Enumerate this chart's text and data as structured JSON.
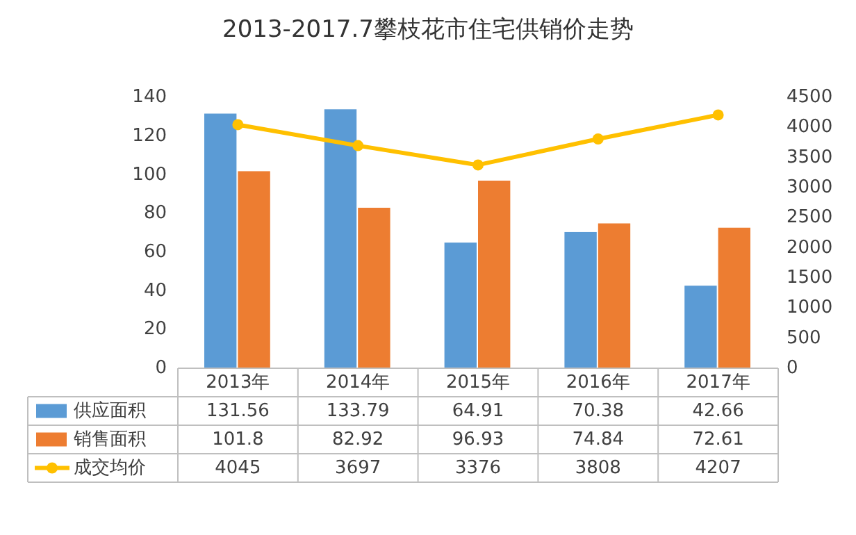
{
  "chart_data": {
    "type": "bar",
    "title": "2013-2017.7攀枝花市住宅供销价走势",
    "categories": [
      "2013年",
      "2014年",
      "2015年",
      "2016年",
      "2017年"
    ],
    "series": [
      {
        "name": "供应面积",
        "color": "#5b9bd5",
        "values": [
          131.56,
          133.79,
          64.91,
          70.38,
          42.66
        ]
      },
      {
        "name": "销售面积",
        "color": "#ed7d31",
        "values": [
          101.8,
          82.92,
          96.93,
          74.84,
          72.61
        ]
      },
      {
        "name": "成交均价",
        "color": "#ffc000",
        "type": "line",
        "axis": "y2",
        "marker": "circle",
        "values": [
          4045,
          3697,
          3376,
          3808,
          4207
        ]
      }
    ],
    "ylim": [
      0,
      140
    ],
    "yticks": [
      0,
      20,
      40,
      60,
      80,
      100,
      120,
      140
    ],
    "y2lim": [
      0,
      4500
    ],
    "y2ticks": [
      0,
      500,
      1000,
      1500,
      2000,
      2500,
      3000,
      3500,
      4000,
      4500
    ],
    "data_labels": true,
    "legend": "bottom",
    "grid": false
  }
}
